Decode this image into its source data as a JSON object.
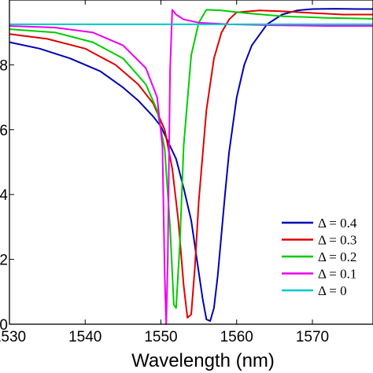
{
  "chart_data": {
    "type": "line",
    "xlabel": "Wavelength (nm)",
    "ylabel": "",
    "xlim": [
      1530,
      1578
    ],
    "ylim": [
      0,
      10
    ],
    "xticks": [
      1530,
      1540,
      1550,
      1560,
      1570
    ],
    "yticks": [
      0,
      2,
      4,
      6,
      8
    ],
    "xtick_labels": [
      "1530",
      "1540",
      "1550",
      "1560",
      "1570"
    ],
    "ytick_labels": [
      "0",
      "2",
      "4",
      "6",
      "8"
    ],
    "grid": false,
    "legend_position": "bottom-right",
    "series": [
      {
        "name": "Δ = 0.4",
        "color": "#0000b4",
        "x": [
          1530,
          1534,
          1538,
          1542,
          1545,
          1547,
          1549,
          1550,
          1551,
          1552,
          1553,
          1554,
          1554.5,
          1555,
          1555.5,
          1556,
          1556.5,
          1557,
          1557.5,
          1558,
          1558.5,
          1559,
          1560,
          1561,
          1562,
          1564,
          1566,
          1568,
          1570,
          1573,
          1576,
          1578
        ],
        "y": [
          8.7,
          8.5,
          8.2,
          7.8,
          7.3,
          6.9,
          6.4,
          6.1,
          5.6,
          5.1,
          4.2,
          3.2,
          2.4,
          1.6,
          0.8,
          0.15,
          0.1,
          0.5,
          1.5,
          2.8,
          4.1,
          5.3,
          7.0,
          8.0,
          8.6,
          9.25,
          9.55,
          9.68,
          9.72,
          9.73,
          9.72,
          9.72
        ]
      },
      {
        "name": "Δ = 0.3",
        "color": "#e00000",
        "x": [
          1530,
          1535,
          1540,
          1544,
          1547,
          1549,
          1550.5,
          1551.5,
          1552.3,
          1553,
          1553.5,
          1554,
          1554.5,
          1555,
          1556,
          1557,
          1558,
          1559,
          1560,
          1563,
          1566,
          1570,
          1574,
          1578
        ],
        "y": [
          8.95,
          8.8,
          8.5,
          8.0,
          7.4,
          6.8,
          6.0,
          4.8,
          3.2,
          1.2,
          0.2,
          0.3,
          1.8,
          3.8,
          6.6,
          8.2,
          9.0,
          9.4,
          9.62,
          9.68,
          9.65,
          9.6,
          9.55,
          9.55
        ]
      },
      {
        "name": "Δ = 0.2",
        "color": "#00cc00",
        "x": [
          1530,
          1536,
          1541,
          1545,
          1548,
          1549.5,
          1550.5,
          1551.2,
          1551.7,
          1552,
          1552.5,
          1553,
          1554,
          1555,
          1556,
          1558,
          1561,
          1566,
          1572,
          1578
        ],
        "y": [
          9.1,
          9.0,
          8.7,
          8.2,
          7.4,
          6.6,
          5.4,
          3.0,
          0.6,
          0.5,
          2.5,
          5.5,
          8.3,
          9.3,
          9.7,
          9.68,
          9.6,
          9.5,
          9.45,
          9.42
        ]
      },
      {
        "name": "Δ = 0.1",
        "color": "#ee00ee",
        "x": [
          1530,
          1536,
          1541,
          1545,
          1548,
          1549.5,
          1550.2,
          1550.5,
          1550.7,
          1550.9,
          1551.2,
          1551.5,
          1552,
          1553,
          1555,
          1559,
          1565,
          1572,
          1578
        ],
        "y": [
          9.2,
          9.15,
          9.0,
          8.6,
          7.9,
          7.0,
          5.5,
          1.5,
          0.0,
          2.0,
          7.8,
          9.7,
          9.55,
          9.4,
          9.3,
          9.25,
          9.22,
          9.2,
          9.2
        ]
      },
      {
        "name": "Δ = 0",
        "color": "#00c8c8",
        "x": [
          1530,
          1578
        ],
        "y": [
          9.25,
          9.25
        ]
      }
    ]
  }
}
